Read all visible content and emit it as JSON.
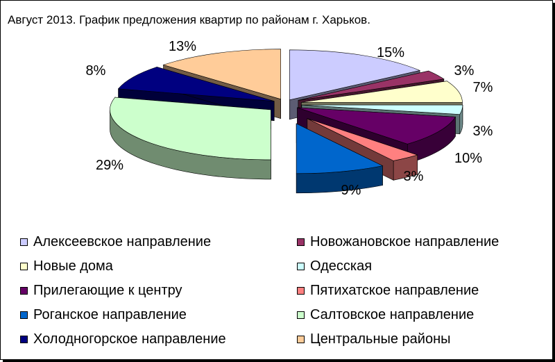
{
  "chart_data": {
    "type": "pie",
    "title": "Август 2013. График предложения квартир по районам г. Харьков.",
    "legend_position": "bottom",
    "slices": [
      {
        "label": "Алексеевское направление",
        "value": 15,
        "value_label": "15%",
        "color": "#ccccff"
      },
      {
        "label": "Новожановское направление",
        "value": 3,
        "value_label": "3%",
        "color": "#993366"
      },
      {
        "label": "Новые дома",
        "value": 7,
        "value_label": "7%",
        "color": "#ffffcc"
      },
      {
        "label": "Одесская",
        "value": 3,
        "value_label": "3%",
        "color": "#ccffff"
      },
      {
        "label": "Прилегающие к центру",
        "value": 10,
        "value_label": "10%",
        "color": "#660066"
      },
      {
        "label": "Пятихатское направление",
        "value": 3,
        "value_label": "3%",
        "color": "#ff8080"
      },
      {
        "label": "Роганское направление",
        "value": 9,
        "value_label": "9%",
        "color": "#0066cc"
      },
      {
        "label": "Салтовское направление",
        "value": 29,
        "value_label": "29%",
        "color": "#ccffcc"
      },
      {
        "label": "Холодногорское направление",
        "value": 8,
        "value_label": "8%",
        "color": "#000080"
      },
      {
        "label": "Центральные районы",
        "value": 13,
        "value_label": "13%",
        "color": "#ffcc99"
      }
    ]
  }
}
